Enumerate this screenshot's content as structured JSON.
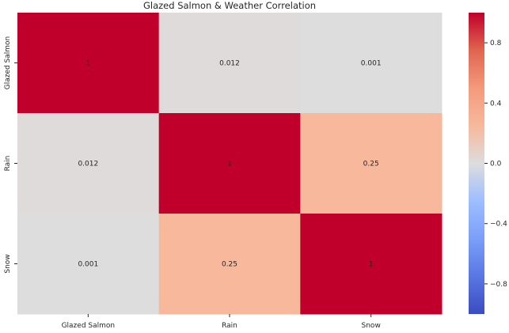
{
  "chart_data": {
    "type": "heatmap",
    "title": "Glazed Salmon & Weather Correlation",
    "rows": [
      "Glazed Salmon",
      "Rain",
      "Snow"
    ],
    "cols": [
      "Glazed Salmon",
      "Rain",
      "Snow"
    ],
    "values": [
      [
        1,
        0.012,
        0.001
      ],
      [
        0.012,
        1,
        0.25
      ],
      [
        0.001,
        0.25,
        1
      ]
    ],
    "cell_labels": [
      [
        "1",
        "0.012",
        "0.001"
      ],
      [
        "0.012",
        "1",
        "0.25"
      ],
      [
        "0.001",
        "0.25",
        "1"
      ]
    ],
    "colormap": "coolwarm",
    "vmin": -1,
    "vmax": 1,
    "colorbar_ticks": [
      "0.8",
      "0.4",
      "0.0",
      "−0.4",
      "−0.8"
    ],
    "colorbar_tick_values": [
      0.8,
      0.4,
      0.0,
      -0.4,
      -0.8
    ],
    "grid": false
  }
}
